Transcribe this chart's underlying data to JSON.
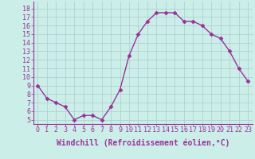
{
  "x": [
    0,
    1,
    2,
    3,
    4,
    5,
    6,
    7,
    8,
    9,
    10,
    11,
    12,
    13,
    14,
    15,
    16,
    17,
    18,
    19,
    20,
    21,
    22,
    23
  ],
  "y": [
    9,
    7.5,
    7,
    6.5,
    5,
    5.5,
    5.5,
    5,
    6.5,
    8.5,
    12.5,
    15,
    16.5,
    17.5,
    17.5,
    17.5,
    16.5,
    16.5,
    16,
    15,
    14.5,
    13,
    11,
    9.5
  ],
  "line_color": "#993399",
  "marker": "D",
  "marker_size": 2.5,
  "bg_color": "#cceee8",
  "grid_color": "#aacccc",
  "xlabel": "Windchill (Refroidissement éolien,°C)",
  "ylabel_ticks": [
    5,
    6,
    7,
    8,
    9,
    10,
    11,
    12,
    13,
    14,
    15,
    16,
    17,
    18
  ],
  "xlim": [
    -0.5,
    23.5
  ],
  "ylim": [
    4.5,
    18.8
  ],
  "xticks": [
    0,
    1,
    2,
    3,
    4,
    5,
    6,
    7,
    8,
    9,
    10,
    11,
    12,
    13,
    14,
    15,
    16,
    17,
    18,
    19,
    20,
    21,
    22,
    23
  ],
  "xlabel_fontsize": 7,
  "tick_fontsize": 6,
  "line_width": 1.0
}
